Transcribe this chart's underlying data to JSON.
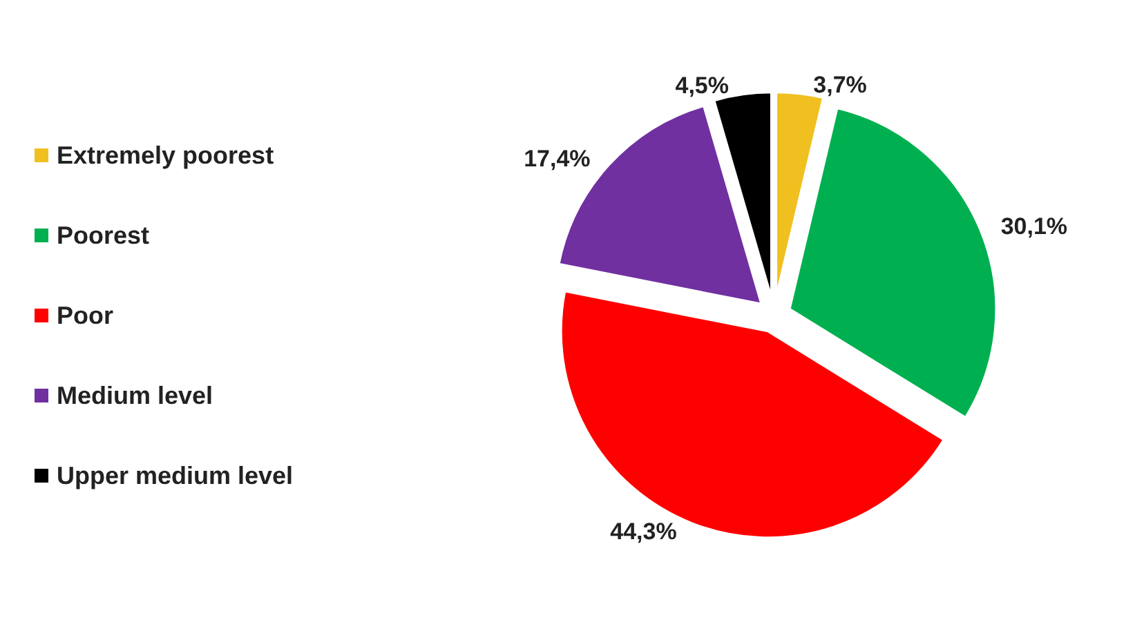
{
  "chart_data": {
    "type": "pie",
    "categories": [
      "Extremely poorest",
      "Poorest",
      "Poor",
      "Medium level",
      "Upper medium level"
    ],
    "values": [
      3.7,
      30.1,
      44.3,
      17.4,
      4.5
    ],
    "value_labels": [
      "3,7%",
      "30,1%",
      "44,3%",
      "17,4%",
      "4,5%"
    ],
    "colors": [
      "#f0c020",
      "#00b050",
      "#ff0000",
      "#7030a0",
      "#000000"
    ],
    "legend": "left"
  }
}
